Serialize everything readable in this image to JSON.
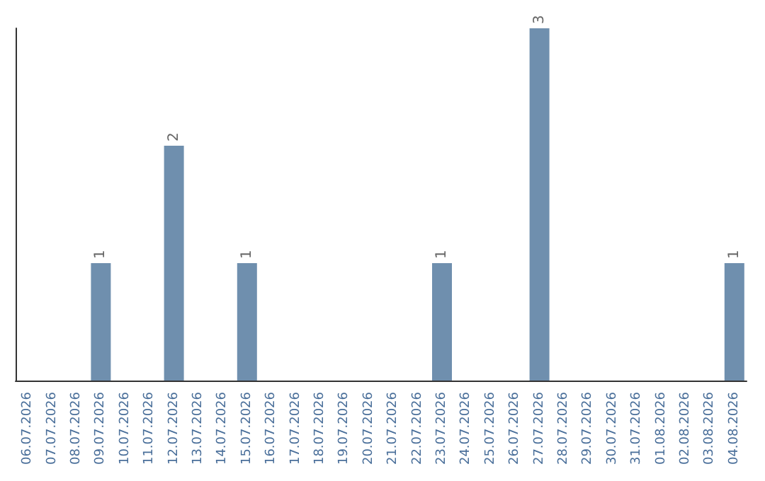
{
  "chart_data": {
    "type": "bar",
    "categories": [
      "06.07.2026",
      "07.07.2026",
      "08.07.2026",
      "09.07.2026",
      "10.07.2026",
      "11.07.2026",
      "12.07.2026",
      "13.07.2026",
      "14.07.2026",
      "15.07.2026",
      "16.07.2026",
      "17.07.2026",
      "18.07.2026",
      "19.07.2026",
      "20.07.2026",
      "21.07.2026",
      "22.07.2026",
      "23.07.2026",
      "24.07.2026",
      "25.07.2026",
      "26.07.2026",
      "27.07.2026",
      "28.07.2026",
      "29.07.2026",
      "30.07.2026",
      "31.07.2026",
      "01.08.2026",
      "02.08.2026",
      "03.08.2026",
      "04.08.2026"
    ],
    "values": [
      0,
      0,
      0,
      1,
      0,
      0,
      2,
      0,
      0,
      1,
      0,
      0,
      0,
      0,
      0,
      0,
      0,
      1,
      0,
      0,
      0,
      3,
      0,
      0,
      0,
      0,
      0,
      0,
      0,
      1
    ],
    "value_labels": [
      null,
      null,
      null,
      "1",
      null,
      null,
      "2",
      null,
      null,
      "1",
      null,
      null,
      null,
      null,
      null,
      null,
      null,
      "1",
      null,
      null,
      null,
      "3",
      null,
      null,
      null,
      null,
      null,
      null,
      null,
      "1"
    ],
    "color": "#6f8fae",
    "tick_labels": "x"
  }
}
